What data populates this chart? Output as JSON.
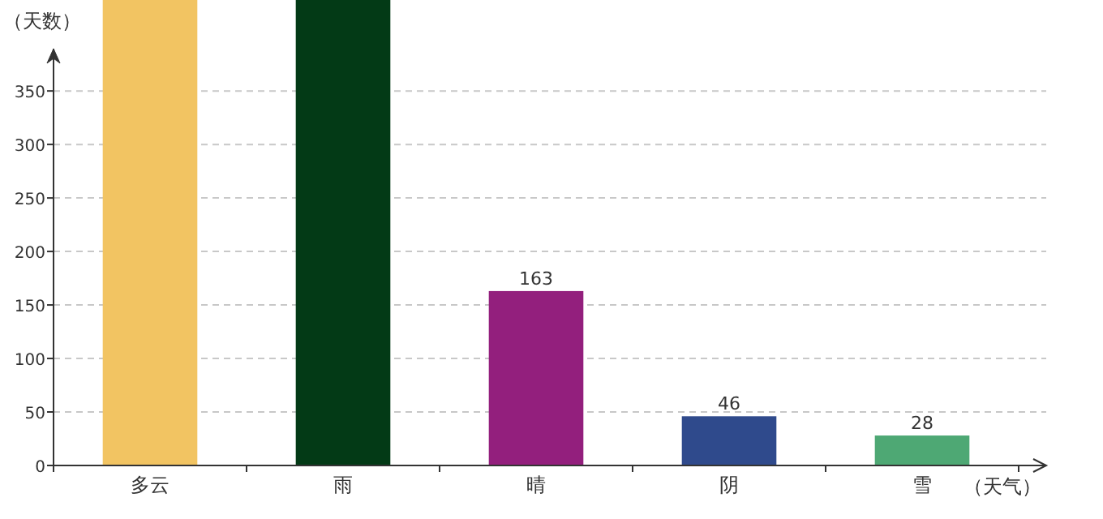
{
  "chart_data": {
    "type": "bar",
    "ylabel": "（天数）",
    "xlabel": "（天气）",
    "categories": [
      "多云",
      "雨",
      "晴",
      "阴",
      "雪"
    ],
    "values": [
      435,
      435,
      163,
      46,
      28
    ],
    "colors": [
      "#f2c462",
      "#033a16",
      "#931f7d",
      "#2f4a8c",
      "#4ea874"
    ],
    "value_labels": [
      null,
      null,
      "163",
      "46",
      "28"
    ],
    "ylim": [
      0,
      435
    ],
    "yticks": [
      0,
      50,
      100,
      150,
      200,
      250,
      300,
      350
    ],
    "grid": "y"
  }
}
